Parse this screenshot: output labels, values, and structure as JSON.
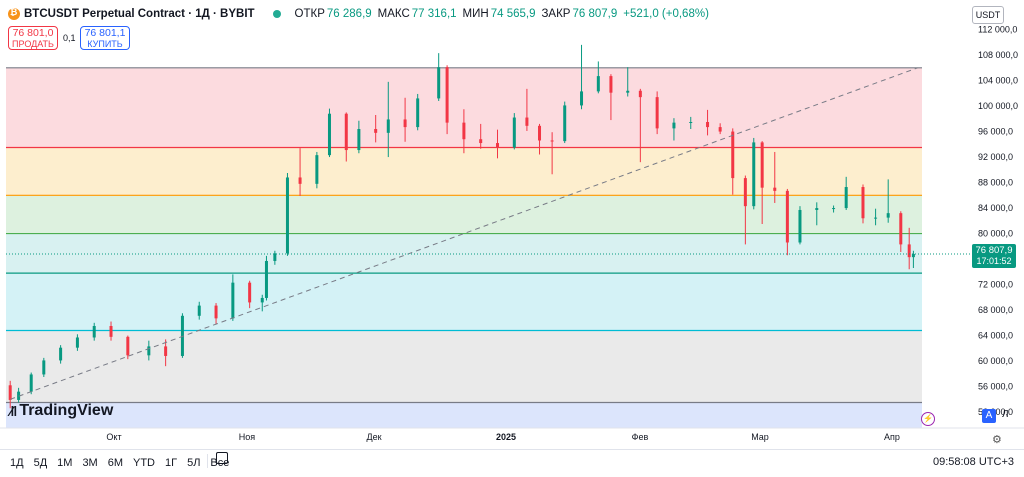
{
  "header": {
    "symbol": "BTCUSDT Perpetual Contract · 1Д · BYBIT",
    "open_label": "ОТКР",
    "open_value": "76 286,9",
    "high_label": "МАКС",
    "high_value": "77 316,1",
    "low_label": "МИН",
    "low_value": "74 565,9",
    "close_label": "ЗАКР",
    "close_value": "76 807,9",
    "change": "+521,0 (+0,68%)",
    "sell_price": "76 801,0",
    "sell_label": "ПРОДАТЬ",
    "spread": "0,1",
    "buy_price": "76 801,1",
    "buy_label": "КУПИТЬ",
    "currency": "USDT"
  },
  "price_axis": {
    "ticks": [
      "112 000,0",
      "108 000,0",
      "104 000,0",
      "100 000,0",
      "96 000,0",
      "92 000,0",
      "88 000,0",
      "84 000,0",
      "80 000,0",
      "72 000,0",
      "68 000,0",
      "64 000,0",
      "60 000,0",
      "56 000,0",
      "52 000,0"
    ],
    "last_price": "76 807,9",
    "countdown": "17:01:52"
  },
  "time_axis": {
    "labels": [
      "Окт",
      "Ноя",
      "Дек",
      "2025",
      "Фев",
      "Мар",
      "Апр"
    ]
  },
  "chart_data": {
    "type": "candlestick",
    "symbol": "BTCUSDT Perpetual Contract",
    "interval": "1Д",
    "exchange": "BYBIT",
    "ylim": [
      49500,
      113500
    ],
    "x_range": [
      "2024-09-05",
      "2025-04-12"
    ],
    "fib_levels": [
      106000,
      93500,
      86000,
      80000,
      73800,
      64800,
      53500
    ],
    "fib_zone_colors": [
      "#fcd5d9",
      "#fdebc6",
      "#d7efd9",
      "#d1efef",
      "#ccf0f5",
      "#e6e6e6",
      "#d6e1fb"
    ],
    "fib_line_colors": [
      "#787b86",
      "#f23645",
      "#ff9800",
      "#4caf50",
      "#089981",
      "#00bcd4",
      "#787b86"
    ],
    "trendline": {
      "x": [
        "2024-09-06",
        "2025-04-10"
      ],
      "y": [
        54000,
        106000
      ]
    },
    "up_color": "#089981",
    "down_color": "#f23645",
    "candles": [
      {
        "d": "2024-09-06",
        "o": 56200,
        "h": 56900,
        "l": 52600,
        "c": 53900
      },
      {
        "d": "2024-09-08",
        "o": 53900,
        "h": 55800,
        "l": 53500,
        "c": 55200
      },
      {
        "d": "2024-09-11",
        "o": 55200,
        "h": 58200,
        "l": 54800,
        "c": 57900
      },
      {
        "d": "2024-09-14",
        "o": 57900,
        "h": 60500,
        "l": 57500,
        "c": 60100
      },
      {
        "d": "2024-09-18",
        "o": 60100,
        "h": 62500,
        "l": 59600,
        "c": 62100
      },
      {
        "d": "2024-09-22",
        "o": 62100,
        "h": 64200,
        "l": 61600,
        "c": 63700
      },
      {
        "d": "2024-09-26",
        "o": 63700,
        "h": 66000,
        "l": 63200,
        "c": 65500
      },
      {
        "d": "2024-09-30",
        "o": 65500,
        "h": 66200,
        "l": 63200,
        "c": 63800
      },
      {
        "d": "2024-10-04",
        "o": 63800,
        "h": 64000,
        "l": 60300,
        "c": 60900
      },
      {
        "d": "2024-10-09",
        "o": 60900,
        "h": 63200,
        "l": 60100,
        "c": 62300
      },
      {
        "d": "2024-10-13",
        "o": 62300,
        "h": 63400,
        "l": 59200,
        "c": 60800
      },
      {
        "d": "2024-10-17",
        "o": 60800,
        "h": 67500,
        "l": 60500,
        "c": 67100
      },
      {
        "d": "2024-10-21",
        "o": 67100,
        "h": 69300,
        "l": 66500,
        "c": 68700
      },
      {
        "d": "2024-10-25",
        "o": 68700,
        "h": 69100,
        "l": 65800,
        "c": 66700
      },
      {
        "d": "2024-10-29",
        "o": 66700,
        "h": 73600,
        "l": 66300,
        "c": 72300
      },
      {
        "d": "2024-11-02",
        "o": 72300,
        "h": 72600,
        "l": 68300,
        "c": 69200
      },
      {
        "d": "2024-11-05",
        "o": 69200,
        "h": 70400,
        "l": 67800,
        "c": 69900
      },
      {
        "d": "2024-11-06",
        "o": 69900,
        "h": 76500,
        "l": 69500,
        "c": 75700
      },
      {
        "d": "2024-11-08",
        "o": 75700,
        "h": 77300,
        "l": 75100,
        "c": 76900
      },
      {
        "d": "2024-11-11",
        "o": 76900,
        "h": 89500,
        "l": 76500,
        "c": 88800
      },
      {
        "d": "2024-11-14",
        "o": 88800,
        "h": 93400,
        "l": 85900,
        "c": 87800
      },
      {
        "d": "2024-11-18",
        "o": 87800,
        "h": 92800,
        "l": 87100,
        "c": 92300
      },
      {
        "d": "2024-11-21",
        "o": 92300,
        "h": 99600,
        "l": 92000,
        "c": 98800
      },
      {
        "d": "2024-11-25",
        "o": 98800,
        "h": 99000,
        "l": 91300,
        "c": 93100
      },
      {
        "d": "2024-11-28",
        "o": 93100,
        "h": 97700,
        "l": 92600,
        "c": 96400
      },
      {
        "d": "2024-12-02",
        "o": 96400,
        "h": 98600,
        "l": 94300,
        "c": 95800
      },
      {
        "d": "2024-12-05",
        "o": 95800,
        "h": 103800,
        "l": 92000,
        "c": 97900
      },
      {
        "d": "2024-12-09",
        "o": 97900,
        "h": 101300,
        "l": 94400,
        "c": 96700
      },
      {
        "d": "2024-12-12",
        "o": 96700,
        "h": 101900,
        "l": 96200,
        "c": 101200
      },
      {
        "d": "2024-12-17",
        "o": 101200,
        "h": 108300,
        "l": 100800,
        "c": 106100
      },
      {
        "d": "2024-12-19",
        "o": 106100,
        "h": 106400,
        "l": 95600,
        "c": 97400
      },
      {
        "d": "2024-12-23",
        "o": 97400,
        "h": 99500,
        "l": 92600,
        "c": 94800
      },
      {
        "d": "2024-12-27",
        "o": 94800,
        "h": 97200,
        "l": 93300,
        "c": 94200
      },
      {
        "d": "2024-12-31",
        "o": 94200,
        "h": 96300,
        "l": 91800,
        "c": 93500
      },
      {
        "d": "2025-01-04",
        "o": 93500,
        "h": 98900,
        "l": 93200,
        "c": 98200
      },
      {
        "d": "2025-01-07",
        "o": 98200,
        "h": 102700,
        "l": 96100,
        "c": 96900
      },
      {
        "d": "2025-01-10",
        "o": 96900,
        "h": 97200,
        "l": 92400,
        "c": 94600
      },
      {
        "d": "2025-01-13",
        "o": 94600,
        "h": 95900,
        "l": 89300,
        "c": 94500
      },
      {
        "d": "2025-01-16",
        "o": 94500,
        "h": 100700,
        "l": 94200,
        "c": 100100
      },
      {
        "d": "2025-01-20",
        "o": 100100,
        "h": 109600,
        "l": 99500,
        "c": 102300
      },
      {
        "d": "2025-01-24",
        "o": 102300,
        "h": 107000,
        "l": 102000,
        "c": 104700
      },
      {
        "d": "2025-01-27",
        "o": 104700,
        "h": 105000,
        "l": 97800,
        "c": 102100
      },
      {
        "d": "2025-01-31",
        "o": 102100,
        "h": 106100,
        "l": 101500,
        "c": 102400
      },
      {
        "d": "2025-02-03",
        "o": 102400,
        "h": 102700,
        "l": 91200,
        "c": 101400
      },
      {
        "d": "2025-02-07",
        "o": 101400,
        "h": 102300,
        "l": 95600,
        "c": 96500
      },
      {
        "d": "2025-02-11",
        "o": 96500,
        "h": 98100,
        "l": 94600,
        "c": 97400
      },
      {
        "d": "2025-02-15",
        "o": 97400,
        "h": 98300,
        "l": 96400,
        "c": 97500
      },
      {
        "d": "2025-02-19",
        "o": 97500,
        "h": 99400,
        "l": 95400,
        "c": 96700
      },
      {
        "d": "2025-02-22",
        "o": 96700,
        "h": 97300,
        "l": 95600,
        "c": 96000
      },
      {
        "d": "2025-02-25",
        "o": 96000,
        "h": 96500,
        "l": 86100,
        "c": 88700
      },
      {
        "d": "2025-02-28",
        "o": 88700,
        "h": 89100,
        "l": 78300,
        "c": 84300
      },
      {
        "d": "2025-03-02",
        "o": 84300,
        "h": 95000,
        "l": 83800,
        "c": 94300
      },
      {
        "d": "2025-03-04",
        "o": 94300,
        "h": 94500,
        "l": 81500,
        "c": 87200
      },
      {
        "d": "2025-03-07",
        "o": 87200,
        "h": 92800,
        "l": 84800,
        "c": 86700
      },
      {
        "d": "2025-03-10",
        "o": 86700,
        "h": 87000,
        "l": 76600,
        "c": 78600
      },
      {
        "d": "2025-03-13",
        "o": 78600,
        "h": 84300,
        "l": 78300,
        "c": 83700
      },
      {
        "d": "2025-03-17",
        "o": 83700,
        "h": 84900,
        "l": 81300,
        "c": 84000
      },
      {
        "d": "2025-03-21",
        "o": 84000,
        "h": 84400,
        "l": 83300,
        "c": 84000
      },
      {
        "d": "2025-03-24",
        "o": 84000,
        "h": 88900,
        "l": 83700,
        "c": 87300
      },
      {
        "d": "2025-03-28",
        "o": 87300,
        "h": 87700,
        "l": 81600,
        "c": 82400
      },
      {
        "d": "2025-03-31",
        "o": 82400,
        "h": 83900,
        "l": 81300,
        "c": 82500
      },
      {
        "d": "2025-04-03",
        "o": 82500,
        "h": 88500,
        "l": 81700,
        "c": 83200
      },
      {
        "d": "2025-04-06",
        "o": 83200,
        "h": 83500,
        "l": 77100,
        "c": 78300
      },
      {
        "d": "2025-04-08",
        "o": 78300,
        "h": 80900,
        "l": 74400,
        "c": 76300
      },
      {
        "d": "2025-04-09",
        "o": 76300,
        "h": 77300,
        "l": 74600,
        "c": 76800
      }
    ]
  },
  "branding": {
    "logo_text": "TradingView"
  },
  "footer": {
    "timeframes": [
      "1Д",
      "5Д",
      "1М",
      "3М",
      "6М",
      "YTD",
      "1Г",
      "5Л",
      "Все"
    ],
    "clock": "09:58:08 UTC+3",
    "auto_label": "A",
    "log_label": "Л"
  }
}
